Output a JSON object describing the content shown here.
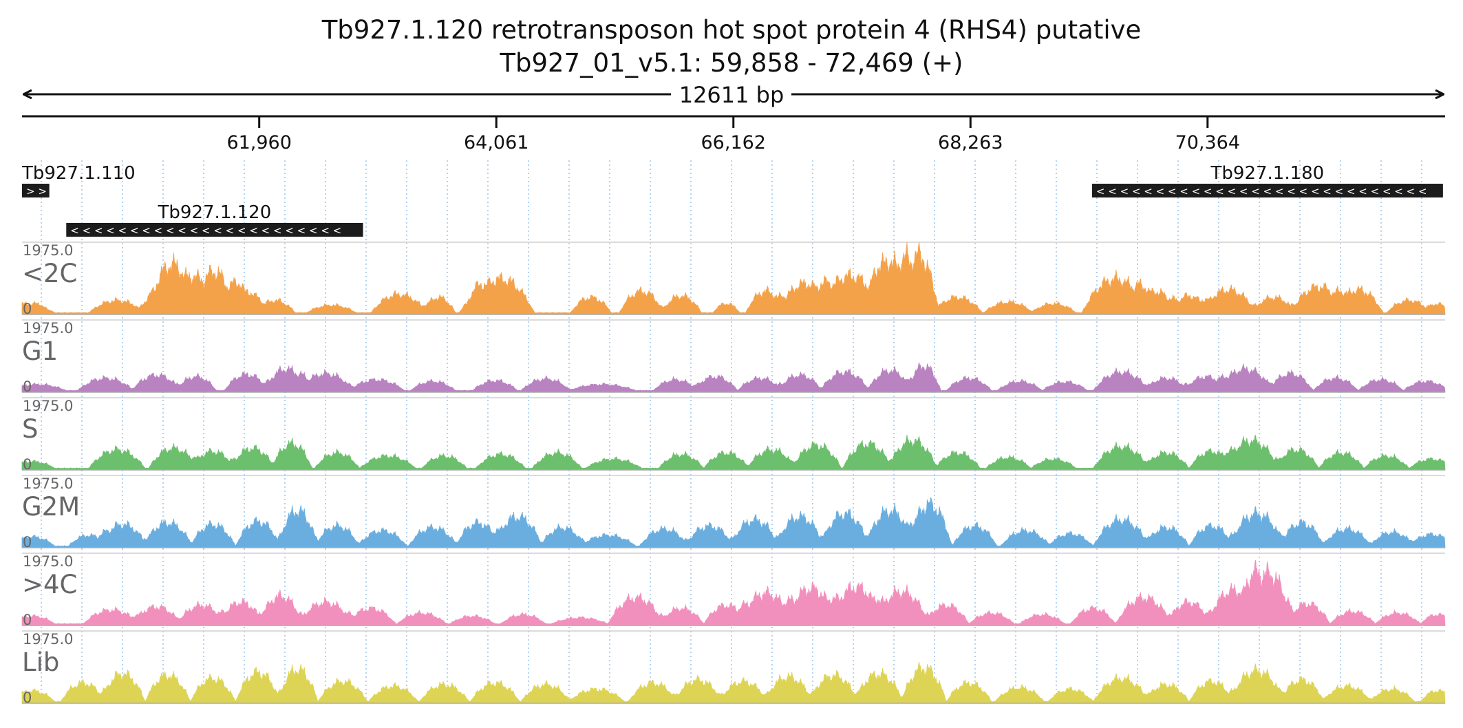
{
  "header": {
    "title": "Tb927.1.120  retrotransposon hot spot protein 4 (RHS4)  putative",
    "subtitle": "Tb927_01_v5.1: 59,858 - 72,469 (+)",
    "span_label": "12611 bp"
  },
  "chart_data": {
    "type": "area",
    "chromosome": "Tb927_01_v5.1",
    "xlim": [
      59858,
      72469
    ],
    "x_ticks": [
      61960,
      64061,
      66162,
      68263,
      70364
    ],
    "x_tick_labels": [
      "61,960",
      "64,061",
      "66,162",
      "68,263",
      "70,364"
    ],
    "genes": [
      {
        "id": "Tb927.1.110",
        "start": 59858,
        "end": 60100,
        "strand": "+",
        "row": 0
      },
      {
        "id": "Tb927.1.120",
        "start": 60250,
        "end": 62880,
        "strand": "-",
        "row": 1
      },
      {
        "id": "Tb927.1.180",
        "start": 69340,
        "end": 72450,
        "strand": "-",
        "row": 0
      }
    ],
    "ylim": [
      0,
      1975.0
    ],
    "y_max_label": "1975.0",
    "y_min_label": "0",
    "tracks": [
      {
        "name": "<2C",
        "color": "#f4a24a",
        "peaks": [
          [
            59900,
            300,
            180
          ],
          [
            60050,
            120,
            100
          ],
          [
            60700,
            400,
            250
          ],
          [
            61100,
            850,
            200
          ],
          [
            61350,
            1200,
            320
          ],
          [
            61650,
            900,
            180
          ],
          [
            61850,
            700,
            150
          ],
          [
            62100,
            400,
            180
          ],
          [
            62600,
            250,
            220
          ],
          [
            63200,
            600,
            250
          ],
          [
            63550,
            500,
            150
          ],
          [
            63850,
            350,
            120
          ],
          [
            64100,
            1100,
            300
          ],
          [
            64900,
            500,
            180
          ],
          [
            65350,
            700,
            200
          ],
          [
            65700,
            550,
            180
          ],
          [
            66100,
            300,
            120
          ],
          [
            66450,
            700,
            180
          ],
          [
            66800,
            950,
            250
          ],
          [
            67200,
            1200,
            300
          ],
          [
            67550,
            1700,
            180
          ],
          [
            67800,
            1900,
            180
          ],
          [
            68150,
            500,
            220
          ],
          [
            68600,
            350,
            220
          ],
          [
            69000,
            300,
            200
          ],
          [
            69550,
            1100,
            300
          ],
          [
            69900,
            700,
            200
          ],
          [
            70200,
            550,
            180
          ],
          [
            70550,
            750,
            250
          ],
          [
            70950,
            500,
            200
          ],
          [
            71350,
            850,
            250
          ],
          [
            71700,
            750,
            220
          ],
          [
            72150,
            400,
            200
          ],
          [
            72400,
            300,
            100
          ]
        ]
      },
      {
        "name": "G1",
        "color": "#b982c0",
        "peaks": [
          [
            60000,
            200,
            250
          ],
          [
            60600,
            400,
            250
          ],
          [
            61050,
            500,
            220
          ],
          [
            61400,
            450,
            180
          ],
          [
            61850,
            520,
            200
          ],
          [
            62200,
            700,
            200
          ],
          [
            62550,
            550,
            250
          ],
          [
            63000,
            350,
            250
          ],
          [
            63500,
            300,
            200
          ],
          [
            64050,
            320,
            200
          ],
          [
            64500,
            380,
            220
          ],
          [
            65000,
            200,
            300
          ],
          [
            65650,
            350,
            200
          ],
          [
            66000,
            450,
            200
          ],
          [
            66400,
            400,
            200
          ],
          [
            66750,
            500,
            200
          ],
          [
            67150,
            600,
            220
          ],
          [
            67550,
            650,
            200
          ],
          [
            67850,
            800,
            150
          ],
          [
            68250,
            400,
            200
          ],
          [
            68700,
            300,
            200
          ],
          [
            69100,
            280,
            200
          ],
          [
            69600,
            600,
            250
          ],
          [
            70000,
            400,
            200
          ],
          [
            70350,
            450,
            200
          ],
          [
            70700,
            700,
            250
          ],
          [
            71100,
            550,
            200
          ],
          [
            71500,
            400,
            200
          ],
          [
            71900,
            350,
            200
          ],
          [
            72300,
            300,
            200
          ]
        ]
      },
      {
        "name": "S",
        "color": "#6cbf6c",
        "peaks": [
          [
            59950,
            220,
            200
          ],
          [
            60700,
            600,
            250
          ],
          [
            61200,
            650,
            220
          ],
          [
            61550,
            550,
            200
          ],
          [
            61900,
            650,
            200
          ],
          [
            62250,
            800,
            180
          ],
          [
            62650,
            500,
            200
          ],
          [
            63100,
            400,
            250
          ],
          [
            63600,
            400,
            200
          ],
          [
            64100,
            450,
            220
          ],
          [
            64600,
            500,
            220
          ],
          [
            65100,
            300,
            250
          ],
          [
            65700,
            450,
            200
          ],
          [
            66100,
            500,
            200
          ],
          [
            66500,
            600,
            220
          ],
          [
            66900,
            750,
            220
          ],
          [
            67350,
            800,
            220
          ],
          [
            67750,
            900,
            220
          ],
          [
            68150,
            500,
            200
          ],
          [
            68600,
            350,
            200
          ],
          [
            69000,
            300,
            200
          ],
          [
            69600,
            700,
            250
          ],
          [
            70000,
            500,
            200
          ],
          [
            70400,
            550,
            200
          ],
          [
            70750,
            900,
            250
          ],
          [
            71150,
            600,
            200
          ],
          [
            71550,
            500,
            200
          ],
          [
            71950,
            400,
            200
          ],
          [
            72350,
            300,
            200
          ]
        ]
      },
      {
        "name": "G2M",
        "color": "#6aaee0",
        "peaks": [
          [
            59950,
            300,
            200
          ],
          [
            60450,
            350,
            180
          ],
          [
            60750,
            700,
            220
          ],
          [
            61150,
            750,
            220
          ],
          [
            61550,
            700,
            200
          ],
          [
            61950,
            800,
            200
          ],
          [
            62300,
            1150,
            180
          ],
          [
            62650,
            650,
            200
          ],
          [
            63050,
            500,
            220
          ],
          [
            63500,
            600,
            220
          ],
          [
            63900,
            750,
            200
          ],
          [
            64250,
            950,
            220
          ],
          [
            64650,
            600,
            200
          ],
          [
            65050,
            350,
            250
          ],
          [
            65550,
            550,
            220
          ],
          [
            65950,
            650,
            220
          ],
          [
            66350,
            850,
            220
          ],
          [
            66750,
            950,
            220
          ],
          [
            67150,
            1050,
            220
          ],
          [
            67550,
            1150,
            220
          ],
          [
            67900,
            1350,
            200
          ],
          [
            68300,
            650,
            200
          ],
          [
            68750,
            500,
            220
          ],
          [
            69150,
            400,
            200
          ],
          [
            69600,
            850,
            250
          ],
          [
            70000,
            600,
            200
          ],
          [
            70400,
            650,
            200
          ],
          [
            70800,
            1050,
            250
          ],
          [
            71200,
            750,
            200
          ],
          [
            71600,
            550,
            220
          ],
          [
            72000,
            450,
            200
          ],
          [
            72350,
            380,
            200
          ]
        ]
      },
      {
        "name": ">4C",
        "color": "#f290bd",
        "peaks": [
          [
            59950,
            250,
            200
          ],
          [
            60650,
            450,
            250
          ],
          [
            61050,
            550,
            220
          ],
          [
            61450,
            600,
            220
          ],
          [
            61800,
            700,
            200
          ],
          [
            62150,
            900,
            200
          ],
          [
            62550,
            700,
            250
          ],
          [
            62950,
            500,
            220
          ],
          [
            63400,
            350,
            220
          ],
          [
            63850,
            250,
            200
          ],
          [
            64300,
            300,
            200
          ],
          [
            64800,
            200,
            250
          ],
          [
            65300,
            850,
            250
          ],
          [
            65700,
            500,
            200
          ],
          [
            66100,
            600,
            200
          ],
          [
            66450,
            1000,
            250
          ],
          [
            66850,
            1150,
            250
          ],
          [
            67250,
            1200,
            250
          ],
          [
            67650,
            1050,
            250
          ],
          [
            68050,
            600,
            200
          ],
          [
            68450,
            350,
            200
          ],
          [
            68900,
            300,
            200
          ],
          [
            69350,
            500,
            200
          ],
          [
            69800,
            850,
            250
          ],
          [
            70200,
            700,
            200
          ],
          [
            70600,
            1100,
            250
          ],
          [
            70900,
            1650,
            220
          ],
          [
            71250,
            650,
            200
          ],
          [
            71650,
            400,
            200
          ],
          [
            72050,
            350,
            200
          ],
          [
            72400,
            300,
            150
          ]
        ]
      },
      {
        "name": "Lib",
        "color": "#ddd455",
        "peaks": [
          [
            59950,
            350,
            200
          ],
          [
            60400,
            600,
            200
          ],
          [
            60750,
            900,
            200
          ],
          [
            61150,
            850,
            200
          ],
          [
            61550,
            750,
            200
          ],
          [
            61950,
            950,
            200
          ],
          [
            62300,
            1050,
            180
          ],
          [
            62700,
            650,
            220
          ],
          [
            63150,
            500,
            220
          ],
          [
            63600,
            550,
            220
          ],
          [
            64050,
            600,
            220
          ],
          [
            64500,
            550,
            220
          ],
          [
            64950,
            400,
            250
          ],
          [
            65450,
            600,
            220
          ],
          [
            65850,
            700,
            220
          ],
          [
            66250,
            650,
            220
          ],
          [
            66650,
            800,
            220
          ],
          [
            67050,
            850,
            220
          ],
          [
            67450,
            900,
            220
          ],
          [
            67850,
            1100,
            200
          ],
          [
            68250,
            600,
            200
          ],
          [
            68700,
            450,
            220
          ],
          [
            69150,
            400,
            200
          ],
          [
            69600,
            750,
            250
          ],
          [
            70000,
            550,
            200
          ],
          [
            70400,
            650,
            200
          ],
          [
            70800,
            1000,
            250
          ],
          [
            71200,
            700,
            200
          ],
          [
            71600,
            500,
            220
          ],
          [
            72000,
            400,
            200
          ],
          [
            72400,
            350,
            150
          ]
        ]
      }
    ]
  }
}
